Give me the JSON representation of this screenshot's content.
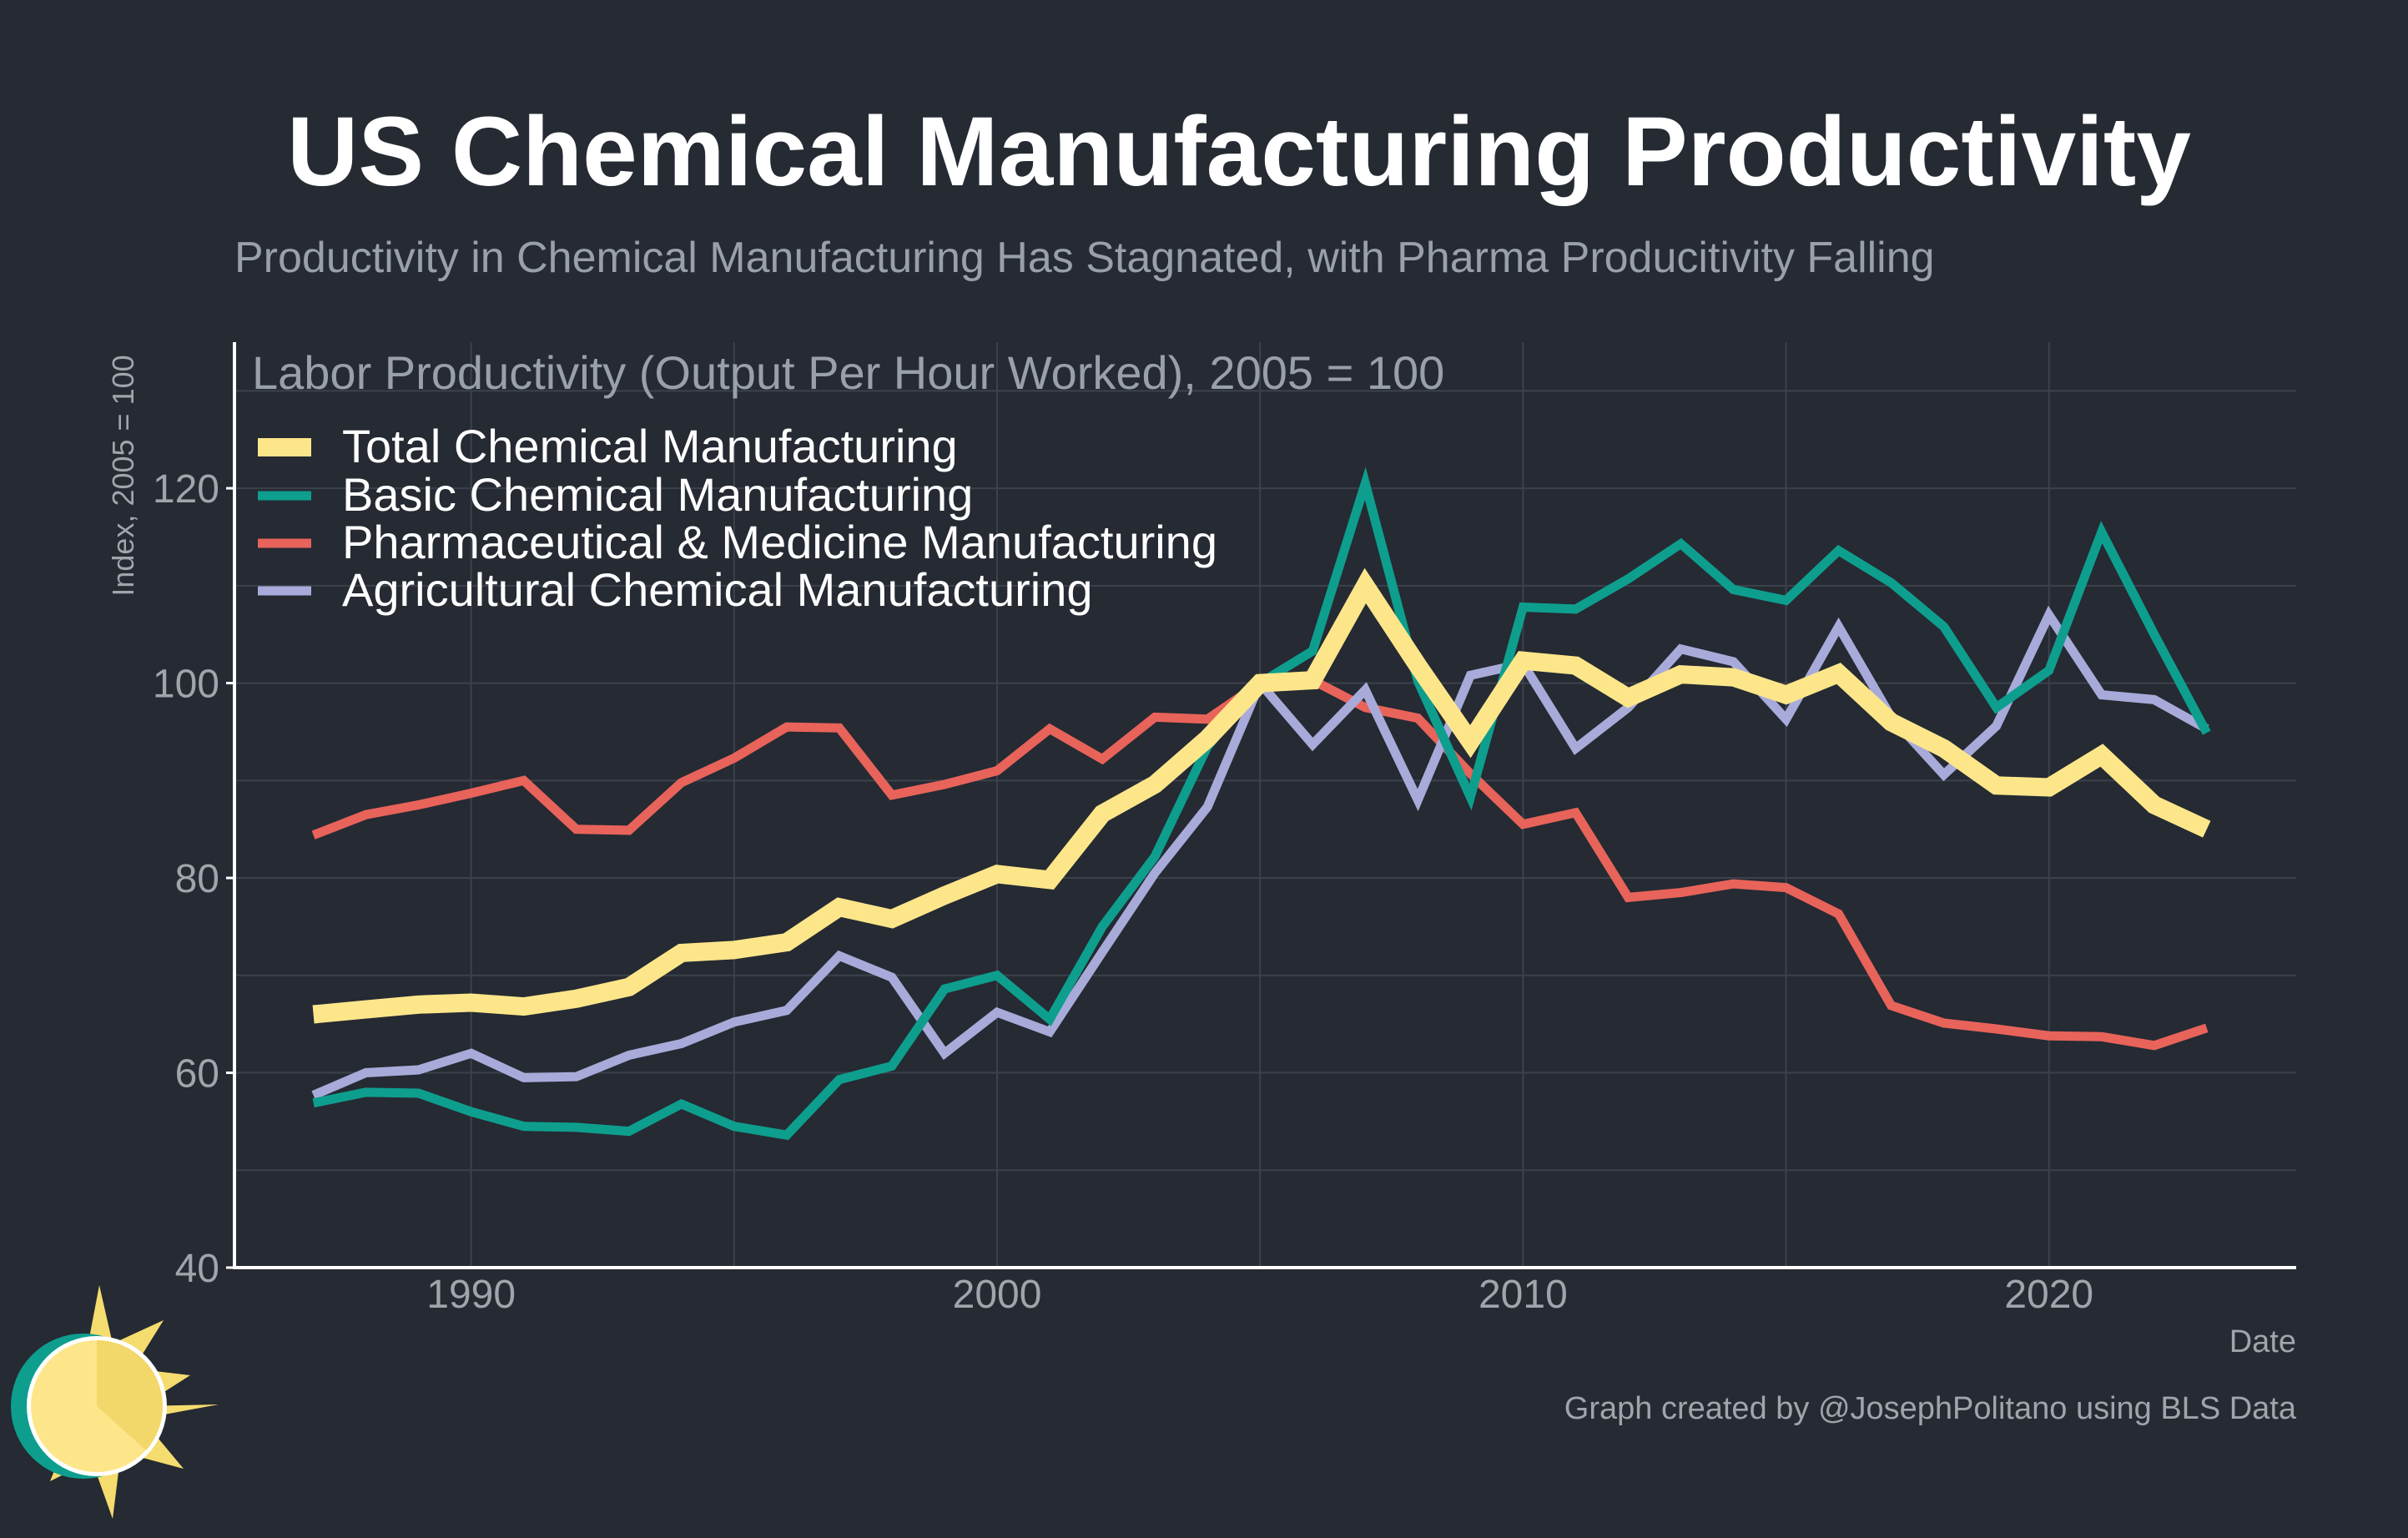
{
  "page": {
    "title": "US Chemical Manufacturing Productivity",
    "subtitle": "Productivity in Chemical Manufacturing Has Stagnated, with Pharma Producitivity Falling",
    "credit": "Graph created by @JosephPolitano using BLS Data",
    "logo_icon": "sun-logo-icon"
  },
  "colors": {
    "background": "#252a33",
    "grid": "#3c424c",
    "axis": "#ffffff",
    "total": "#fde68a",
    "basic": "#0e9e8e",
    "pharma": "#e8635a",
    "agri": "#a8abd9"
  },
  "chart_data": {
    "type": "line",
    "title": "Labor Productivity (Output Per Hour Worked), 2005 = 100",
    "xlabel": "Date",
    "ylabel": "Index, 2005 = 100",
    "xlim": [
      1985.5,
      2024.7
    ],
    "ylim": [
      40,
      135
    ],
    "xticks": [
      1990,
      2000,
      2010,
      2020
    ],
    "yticks": [
      40,
      60,
      80,
      100,
      120
    ],
    "grid": true,
    "legend_position": "top-left",
    "x": [
      1987,
      1988,
      1989,
      1990,
      1991,
      1992,
      1993,
      1994,
      1995,
      1996,
      1997,
      1998,
      1999,
      2000,
      2001,
      2002,
      2003,
      2004,
      2005,
      2006,
      2007,
      2008,
      2009,
      2010,
      2011,
      2012,
      2013,
      2014,
      2015,
      2016,
      2017,
      2018,
      2019,
      2020,
      2021,
      2022,
      2023
    ],
    "series": [
      {
        "key": "total",
        "name": "Total Chemical Manufacturing",
        "values": [
          66.0,
          66.5,
          67.0,
          67.2,
          66.8,
          67.6,
          68.8,
          72.3,
          72.6,
          73.4,
          77.0,
          75.8,
          78.2,
          80.4,
          79.8,
          86.6,
          89.6,
          94.3,
          100.0,
          100.3,
          110.0,
          101.8,
          94.0,
          102.3,
          101.8,
          98.5,
          100.9,
          100.6,
          98.8,
          101.0,
          96.0,
          93.3,
          89.5,
          89.3,
          92.6,
          87.5,
          85.0
        ]
      },
      {
        "key": "basic",
        "name": "Basic Chemical Manufacturing",
        "values": [
          56.9,
          58.0,
          57.9,
          56.0,
          54.5,
          54.4,
          54.0,
          56.8,
          54.5,
          53.6,
          59.3,
          60.7,
          68.6,
          70.0,
          65.5,
          75.0,
          82.2,
          93.5,
          100.0,
          103.3,
          120.5,
          100.2,
          88.3,
          107.8,
          107.6,
          110.7,
          114.3,
          109.6,
          108.5,
          113.6,
          110.3,
          105.8,
          97.5,
          101.3,
          115.5,
          105.0,
          94.9
        ]
      },
      {
        "key": "pharma",
        "name": "Pharmaceutical & Medicine Manufacturing",
        "values": [
          84.4,
          86.5,
          87.5,
          88.7,
          90.0,
          85.0,
          84.9,
          89.8,
          92.3,
          95.5,
          95.4,
          88.5,
          89.6,
          91.0,
          95.3,
          92.2,
          96.5,
          96.3,
          100.0,
          100.3,
          97.5,
          96.4,
          90.7,
          85.5,
          86.7,
          78.0,
          78.5,
          79.4,
          79.0,
          76.3,
          66.9,
          65.1,
          64.5,
          63.8,
          63.7,
          62.8,
          64.6
        ]
      },
      {
        "key": "agri",
        "name": "Agricultural Chemical Manufacturing",
        "values": [
          57.7,
          60.0,
          60.3,
          62.0,
          59.5,
          59.6,
          61.8,
          63.0,
          65.2,
          66.4,
          72.0,
          69.8,
          62.0,
          66.2,
          64.2,
          72.4,
          80.5,
          87.3,
          100.0,
          93.7,
          99.3,
          88.0,
          100.8,
          102.0,
          93.3,
          97.5,
          103.5,
          102.2,
          96.3,
          105.8,
          96.5,
          90.6,
          95.6,
          107.0,
          98.8,
          98.3,
          95.3
        ]
      }
    ]
  }
}
